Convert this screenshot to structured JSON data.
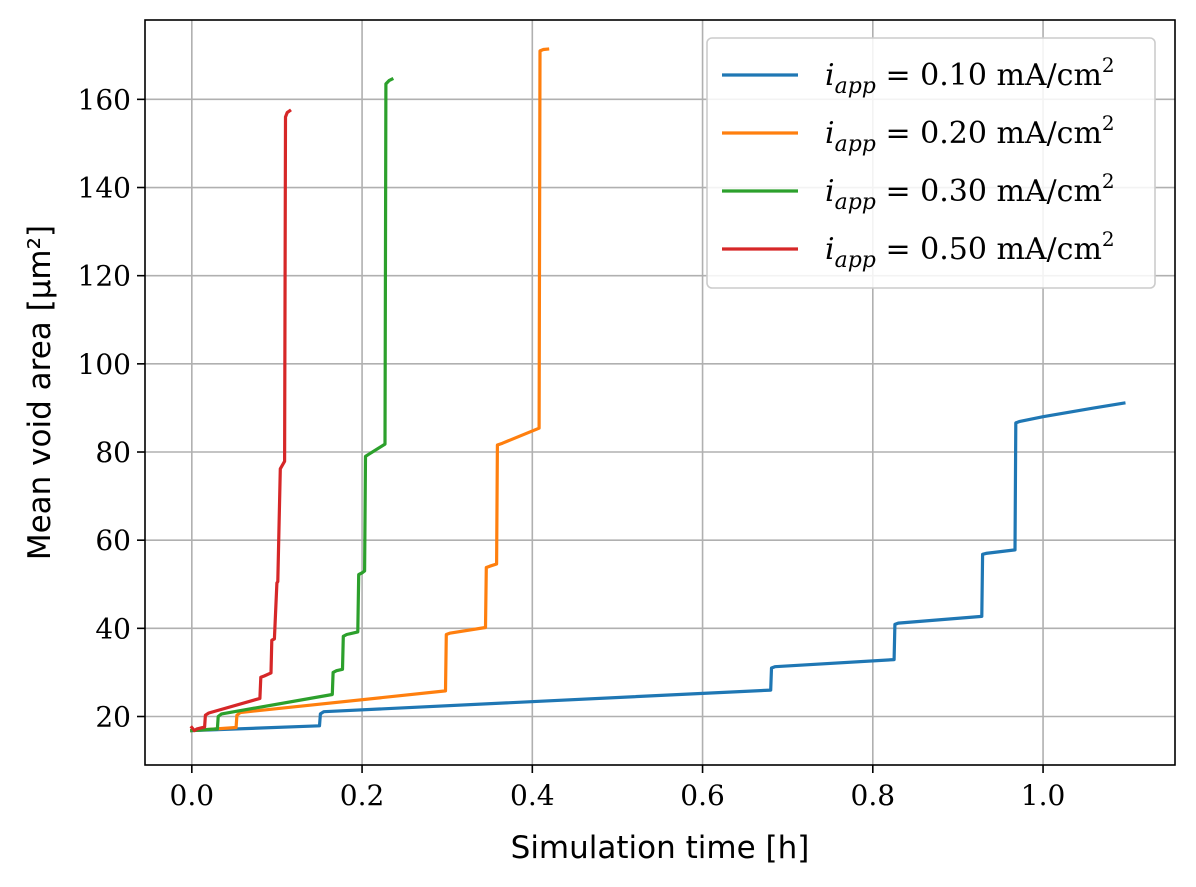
{
  "chart_data": {
    "type": "line",
    "title": "",
    "xlabel": "Simulation time [h]",
    "ylabel": "Mean void area [μm²]",
    "xlim": [
      -0.055,
      1.155
    ],
    "ylim": [
      9,
      178
    ],
    "xticks": [
      0.0,
      0.2,
      0.4,
      0.6,
      0.8,
      1.0
    ],
    "xtick_labels": [
      "0.0",
      "0.2",
      "0.4",
      "0.6",
      "0.8",
      "1.0"
    ],
    "yticks": [
      20,
      40,
      60,
      80,
      100,
      120,
      140,
      160
    ],
    "ytick_labels": [
      "20",
      "40",
      "60",
      "80",
      "100",
      "120",
      "140",
      "160"
    ],
    "grid": true,
    "legend_position": "top-right",
    "series": [
      {
        "name": "i_app = 0.10 mA/cm²",
        "legend_label": {
          "var": "i",
          "sub": "app",
          "rest": " = 0.10 mA/cm",
          "sup": "2"
        },
        "color": "#1f77b4",
        "x": [
          0.0,
          0.15,
          0.151,
          0.155,
          0.68,
          0.681,
          0.685,
          0.825,
          0.826,
          0.83,
          0.928,
          0.929,
          0.933,
          0.967,
          0.968,
          0.972,
          1.0,
          1.03,
          1.06,
          1.095
        ],
        "y": [
          16.8,
          17.9,
          20.6,
          21.1,
          26.0,
          31.0,
          31.3,
          32.9,
          40.9,
          41.2,
          42.7,
          56.8,
          57.0,
          57.8,
          86.6,
          86.9,
          88.0,
          89.0,
          90.0,
          91.1
        ]
      },
      {
        "name": "i_app = 0.20 mA/cm²",
        "legend_label": {
          "var": "i",
          "sub": "app",
          "rest": " = 0.20 mA/cm",
          "sup": "2"
        },
        "color": "#ff7f0e",
        "x": [
          0.0,
          0.052,
          0.053,
          0.057,
          0.298,
          0.299,
          0.303,
          0.345,
          0.346,
          0.35,
          0.358,
          0.359,
          0.365,
          0.408,
          0.409,
          0.413,
          0.418
        ],
        "y": [
          16.8,
          17.5,
          20.3,
          20.9,
          25.8,
          38.6,
          38.9,
          40.2,
          53.8,
          54.1,
          54.6,
          81.6,
          82.0,
          85.4,
          171.0,
          171.3,
          171.4
        ]
      },
      {
        "name": "i_app = 0.30 mA/cm²",
        "legend_label": {
          "var": "i",
          "sub": "app",
          "rest": " = 0.30 mA/cm",
          "sup": "2"
        },
        "color": "#2ca02c",
        "x": [
          0.0,
          0.03,
          0.031,
          0.035,
          0.165,
          0.166,
          0.17,
          0.177,
          0.178,
          0.182,
          0.195,
          0.196,
          0.2,
          0.203,
          0.204,
          0.208,
          0.227,
          0.228,
          0.232,
          0.235
        ],
        "y": [
          16.8,
          17.2,
          20.0,
          20.6,
          25.0,
          30.0,
          30.4,
          30.7,
          38.2,
          38.6,
          39.2,
          52.2,
          52.6,
          53.0,
          79.0,
          79.5,
          81.8,
          163.5,
          164.3,
          164.6
        ]
      },
      {
        "name": "i_app = 0.50 mA/cm²",
        "legend_label": {
          "var": "i",
          "sub": "app",
          "rest": " = 0.50 mA/cm",
          "sup": "2"
        },
        "color": "#d62728",
        "x": [
          0.0,
          0.003,
          0.006,
          0.015,
          0.016,
          0.02,
          0.08,
          0.081,
          0.085,
          0.093,
          0.094,
          0.097,
          0.1,
          0.101,
          0.104,
          0.109,
          0.11,
          0.112,
          0.115
        ],
        "y": [
          17.5,
          16.8,
          17.2,
          17.6,
          20.3,
          20.8,
          24.1,
          28.9,
          29.2,
          29.9,
          37.3,
          37.6,
          50.3,
          50.6,
          76.2,
          77.9,
          156.0,
          157.0,
          157.4
        ]
      }
    ]
  }
}
